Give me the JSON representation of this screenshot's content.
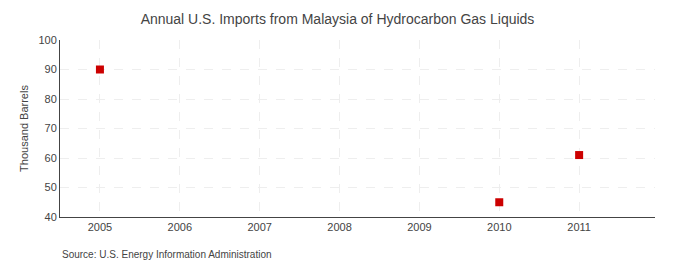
{
  "chart_data": {
    "type": "scatter",
    "title": "Annual U.S. Imports from Malaysia of Hydrocarbon Gas Liquids",
    "ylabel": "Thousand Barrels",
    "source": "Source: U.S. Energy Information Administration",
    "x": [
      2005,
      2010,
      2011
    ],
    "values": [
      90,
      45,
      61
    ],
    "color": "#cc0000",
    "marker": "square",
    "xlim": [
      2004.5,
      2011.95
    ],
    "ylim": [
      40,
      100
    ],
    "xticks": [
      2005,
      2006,
      2007,
      2008,
      2009,
      2010,
      2011
    ],
    "yticks": [
      40,
      50,
      60,
      70,
      80,
      90,
      100
    ],
    "grid": true
  }
}
